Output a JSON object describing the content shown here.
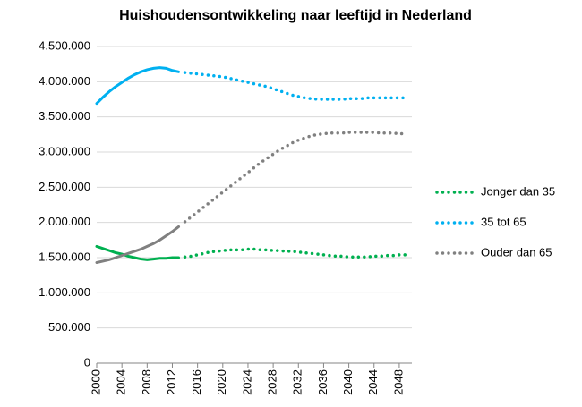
{
  "chart_data": {
    "type": "line",
    "title": "Huishoudensontwikkeling naar leeftijd in Nederland",
    "x": [
      2000,
      2001,
      2002,
      2003,
      2004,
      2005,
      2006,
      2007,
      2008,
      2009,
      2010,
      2011,
      2012,
      2013,
      2014,
      2015,
      2016,
      2017,
      2018,
      2019,
      2020,
      2021,
      2022,
      2023,
      2024,
      2025,
      2026,
      2027,
      2028,
      2029,
      2030,
      2031,
      2032,
      2033,
      2034,
      2035,
      2036,
      2037,
      2038,
      2039,
      2040,
      2041,
      2042,
      2043,
      2044,
      2045,
      2046,
      2047,
      2048,
      2049
    ],
    "series": [
      {
        "name": "Jonger dan 35",
        "color": "#00b050",
        "values": [
          1660000,
          1630000,
          1600000,
          1570000,
          1550000,
          1520000,
          1500000,
          1480000,
          1470000,
          1480000,
          1490000,
          1490000,
          1500000,
          1500000,
          1510000,
          1520000,
          1540000,
          1560000,
          1580000,
          1590000,
          1600000,
          1610000,
          1610000,
          1610000,
          1620000,
          1620000,
          1610000,
          1610000,
          1600000,
          1600000,
          1590000,
          1590000,
          1580000,
          1570000,
          1560000,
          1550000,
          1540000,
          1530000,
          1520000,
          1520000,
          1510000,
          1510000,
          1510000,
          1510000,
          1520000,
          1520000,
          1530000,
          1530000,
          1540000,
          1540000
        ]
      },
      {
        "name": "35 tot 65",
        "color": "#00b0f0",
        "values": [
          3690000,
          3780000,
          3860000,
          3930000,
          3990000,
          4050000,
          4100000,
          4140000,
          4170000,
          4190000,
          4200000,
          4190000,
          4160000,
          4140000,
          4130000,
          4120000,
          4110000,
          4100000,
          4090000,
          4080000,
          4070000,
          4050000,
          4030000,
          4010000,
          3990000,
          3970000,
          3950000,
          3930000,
          3900000,
          3870000,
          3840000,
          3810000,
          3790000,
          3770000,
          3760000,
          3750000,
          3750000,
          3750000,
          3750000,
          3750000,
          3760000,
          3760000,
          3760000,
          3770000,
          3770000,
          3770000,
          3770000,
          3770000,
          3770000,
          3770000
        ]
      },
      {
        "name": "Ouder dan 65",
        "color": "#808080",
        "values": [
          1430000,
          1450000,
          1470000,
          1500000,
          1530000,
          1560000,
          1590000,
          1620000,
          1660000,
          1700000,
          1750000,
          1810000,
          1870000,
          1940000,
          2010000,
          2080000,
          2150000,
          2220000,
          2290000,
          2360000,
          2430000,
          2500000,
          2570000,
          2640000,
          2710000,
          2780000,
          2850000,
          2910000,
          2970000,
          3030000,
          3080000,
          3130000,
          3170000,
          3200000,
          3230000,
          3250000,
          3260000,
          3270000,
          3270000,
          3270000,
          3280000,
          3280000,
          3280000,
          3280000,
          3280000,
          3270000,
          3270000,
          3270000,
          3260000,
          3260000
        ]
      }
    ],
    "xlim": [
      2000,
      2050
    ],
    "xticks": [
      2000,
      2004,
      2008,
      2012,
      2016,
      2020,
      2024,
      2028,
      2032,
      2036,
      2040,
      2044,
      2048
    ],
    "ylim": [
      0,
      4500000
    ],
    "yticks": [
      0,
      {
        "value": 500000,
        "label": "500.000"
      },
      {
        "value": 1000000,
        "label": "1.000.000"
      },
      {
        "value": 1500000,
        "label": "1.500.000"
      },
      {
        "value": 2000000,
        "label": "2.000.000"
      },
      {
        "value": 2500000,
        "label": "2.500.000"
      },
      {
        "value": 3000000,
        "label": "3.000.000"
      },
      {
        "value": 3500000,
        "label": "3.500.000"
      },
      {
        "value": 4000000,
        "label": "4.000.000"
      },
      {
        "value": 4500000,
        "label": "4.500.000"
      }
    ],
    "grid": true,
    "legend": "right",
    "dotted_from_x": 2014
  }
}
